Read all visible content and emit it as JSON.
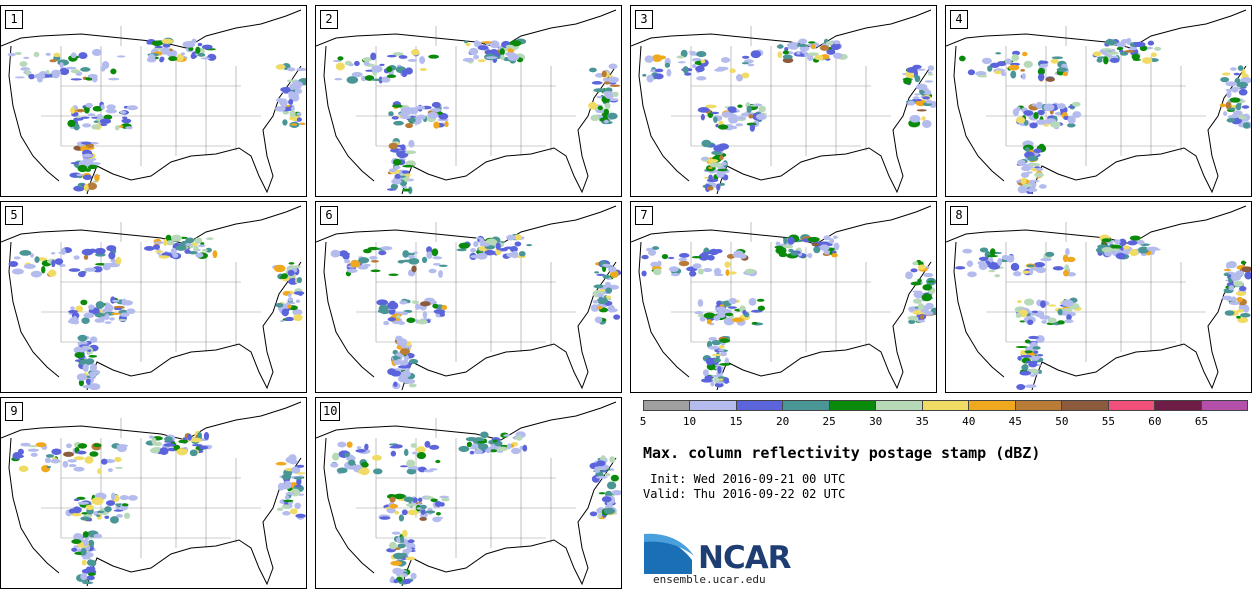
{
  "panels": [
    {
      "label": "1"
    },
    {
      "label": "2"
    },
    {
      "label": "3"
    },
    {
      "label": "4"
    },
    {
      "label": "5"
    },
    {
      "label": "6"
    },
    {
      "label": "7"
    },
    {
      "label": "8"
    },
    {
      "label": "9"
    },
    {
      "label": "10"
    }
  ],
  "legend": {
    "colors": [
      "#a0a0a0",
      "#b4bcee",
      "#5c64dc",
      "#4a9696",
      "#0a8a0a",
      "#b8d9b8",
      "#f0dc64",
      "#f0a81e",
      "#b97c37",
      "#8c5a3c",
      "#f0507a",
      "#6e1e46",
      "#b450aa"
    ],
    "ticks": [
      "5",
      "10",
      "15",
      "20",
      "25",
      "30",
      "35",
      "40",
      "45",
      "50",
      "55",
      "60",
      "65"
    ]
  },
  "title": "Max. column reflectivity postage stamp (dBZ)",
  "init": " Init: Wed 2016-09-21 00 UTC",
  "valid": "Valid: Thu 2016-09-22 02 UTC",
  "logo": {
    "text": "NCAR",
    "icon": "ncar-swoosh-icon"
  },
  "site": "ensemble.ucar.edu"
}
